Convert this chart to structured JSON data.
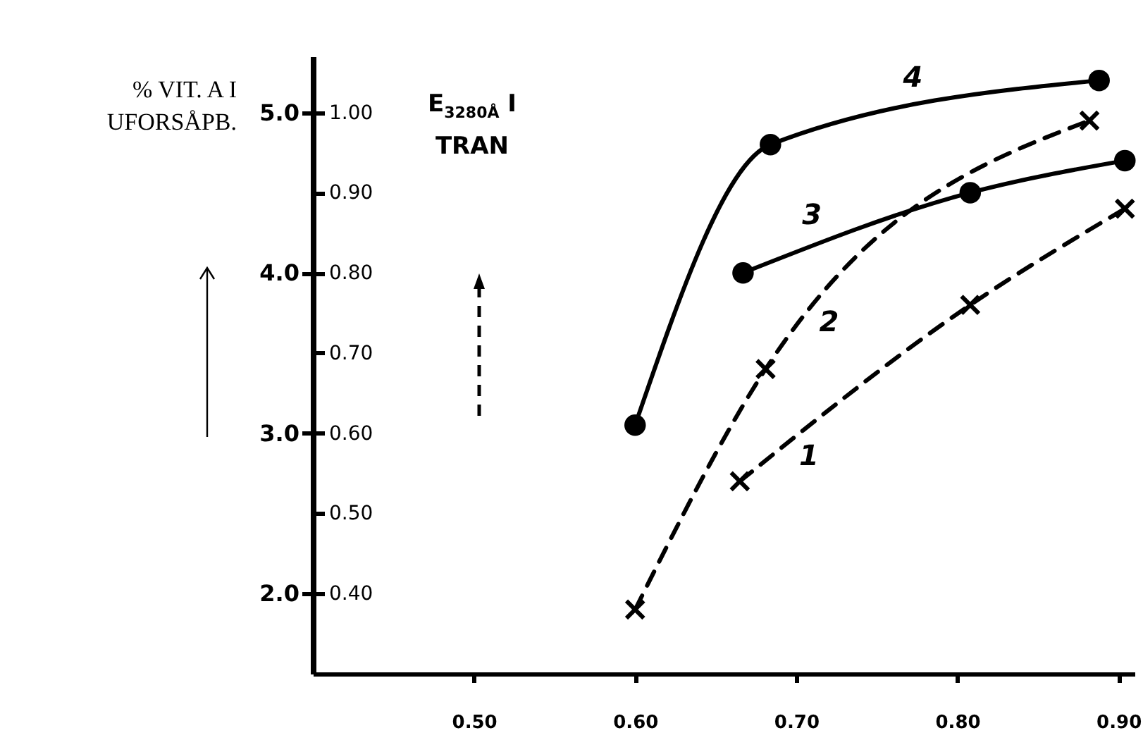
{
  "chart_data": {
    "type": "line",
    "ylabel": "% VIT. A I UFORSÅPB.",
    "y2label": "E$_{3280Å}$ I TRAN",
    "xlim": [
      0.4,
      0.91
    ],
    "xticks": [
      {
        "value": 0.5,
        "label": "0.50"
      },
      {
        "value": 0.6,
        "label": "0.60"
      },
      {
        "value": 0.7,
        "label": "0.70"
      },
      {
        "value": 0.8,
        "label": "0.80"
      },
      {
        "value": 0.9,
        "label": "0.90"
      }
    ],
    "ylim": [
      1.5,
      5.35
    ],
    "yticks": [
      {
        "value": 2,
        "label": "2.0"
      },
      {
        "value": 3,
        "label": "3.0"
      },
      {
        "value": 4,
        "label": "4.0"
      },
      {
        "value": 5,
        "label": "5.0"
      }
    ],
    "y2lim": [
      0.3,
      1.07
    ],
    "y2ticks": [
      {
        "value": 0.4,
        "label": "0.40"
      },
      {
        "value": 0.5,
        "label": "0.50"
      },
      {
        "value": 0.6,
        "label": "0.60"
      },
      {
        "value": 0.7,
        "label": "0.70"
      },
      {
        "value": 0.8,
        "label": "0.80"
      },
      {
        "value": 0.9,
        "label": "0.90"
      },
      {
        "value": 1.0,
        "label": "1.00"
      }
    ],
    "series": [
      {
        "name": "1",
        "color": "#000000",
        "axis": "y2",
        "line_style": "dashed",
        "marker": "cross",
        "x": [
          0.665,
          0.808,
          0.904
        ],
        "values": [
          0.54,
          0.76,
          0.88
        ]
      },
      {
        "name": "2",
        "color": "#000000",
        "axis": "y2",
        "line_style": "dashed",
        "marker": "cross",
        "x": [
          0.6,
          0.681,
          0.882
        ],
        "values": [
          0.38,
          0.68,
          0.99
        ]
      },
      {
        "name": "3",
        "color": "#000000",
        "axis": "y2",
        "line_style": "solid",
        "marker": "circle",
        "x": [
          0.667,
          0.808,
          0.904
        ],
        "values": [
          0.8,
          0.9,
          0.94
        ]
      },
      {
        "name": "4",
        "color": "#000000",
        "axis": "y2",
        "line_style": "solid",
        "marker": "circle",
        "x": [
          0.6,
          0.684,
          0.888
        ],
        "values": [
          0.61,
          0.96,
          1.04
        ]
      }
    ]
  }
}
